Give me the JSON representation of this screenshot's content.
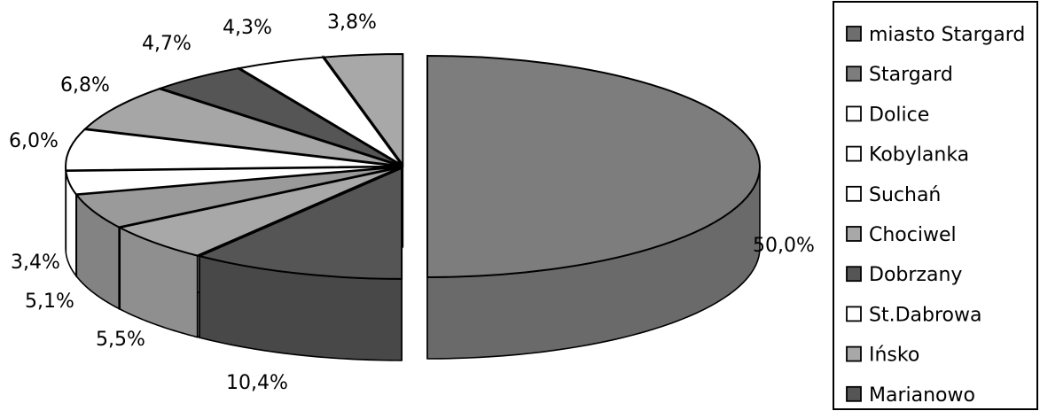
{
  "chart_data": {
    "type": "pie",
    "title": "",
    "legend_position": "right",
    "slices": [
      {
        "name": "miasto Stargard",
        "value": 50.0,
        "label": "50,0%",
        "color": "#7d7d7d"
      },
      {
        "name": "Stargard",
        "value": 10.4,
        "label": "10,4%",
        "color": "#555555"
      },
      {
        "name": "Dolice",
        "value": 5.5,
        "label": "5,5%",
        "color": "#a8a8a8"
      },
      {
        "name": "Kobylanka",
        "value": 5.1,
        "label": "5,1%",
        "color": "#9a9a9a"
      },
      {
        "name": "Suchań",
        "value": 3.4,
        "label": "3,4%",
        "color": "#ffffff"
      },
      {
        "name": "Chociwel",
        "value": 6.0,
        "label": "6,0%",
        "color": "#ffffff"
      },
      {
        "name": "Dobrzany",
        "value": 6.8,
        "label": "6,8%",
        "color": "#a6a6a6"
      },
      {
        "name": "St.Dabrowa",
        "value": 4.7,
        "label": "4,7%",
        "color": "#555555"
      },
      {
        "name": "Ińsko",
        "value": 4.3,
        "label": "4,3%",
        "color": "#ffffff"
      },
      {
        "name": "Marianowo",
        "value": 3.8,
        "label": "3,8%",
        "color": "#a8a8a8"
      }
    ],
    "legend": [
      {
        "label": "miasto Stargard",
        "color": "#6e6e6e"
      },
      {
        "label": "Stargard",
        "color": "#7d7d7d"
      },
      {
        "label": "Dolice",
        "color": "#ffffff"
      },
      {
        "label": "Kobylanka",
        "color": "#ffffff"
      },
      {
        "label": "Suchań",
        "color": "#ffffff"
      },
      {
        "label": "Chociwel",
        "color": "#a8a8a8"
      },
      {
        "label": "Dobrzany",
        "color": "#555555"
      },
      {
        "label": "St.Dabrowa",
        "color": "#ffffff"
      },
      {
        "label": "Ińsko",
        "color": "#a8a8a8"
      },
      {
        "label": "Marianowo",
        "color": "#555555"
      }
    ]
  }
}
